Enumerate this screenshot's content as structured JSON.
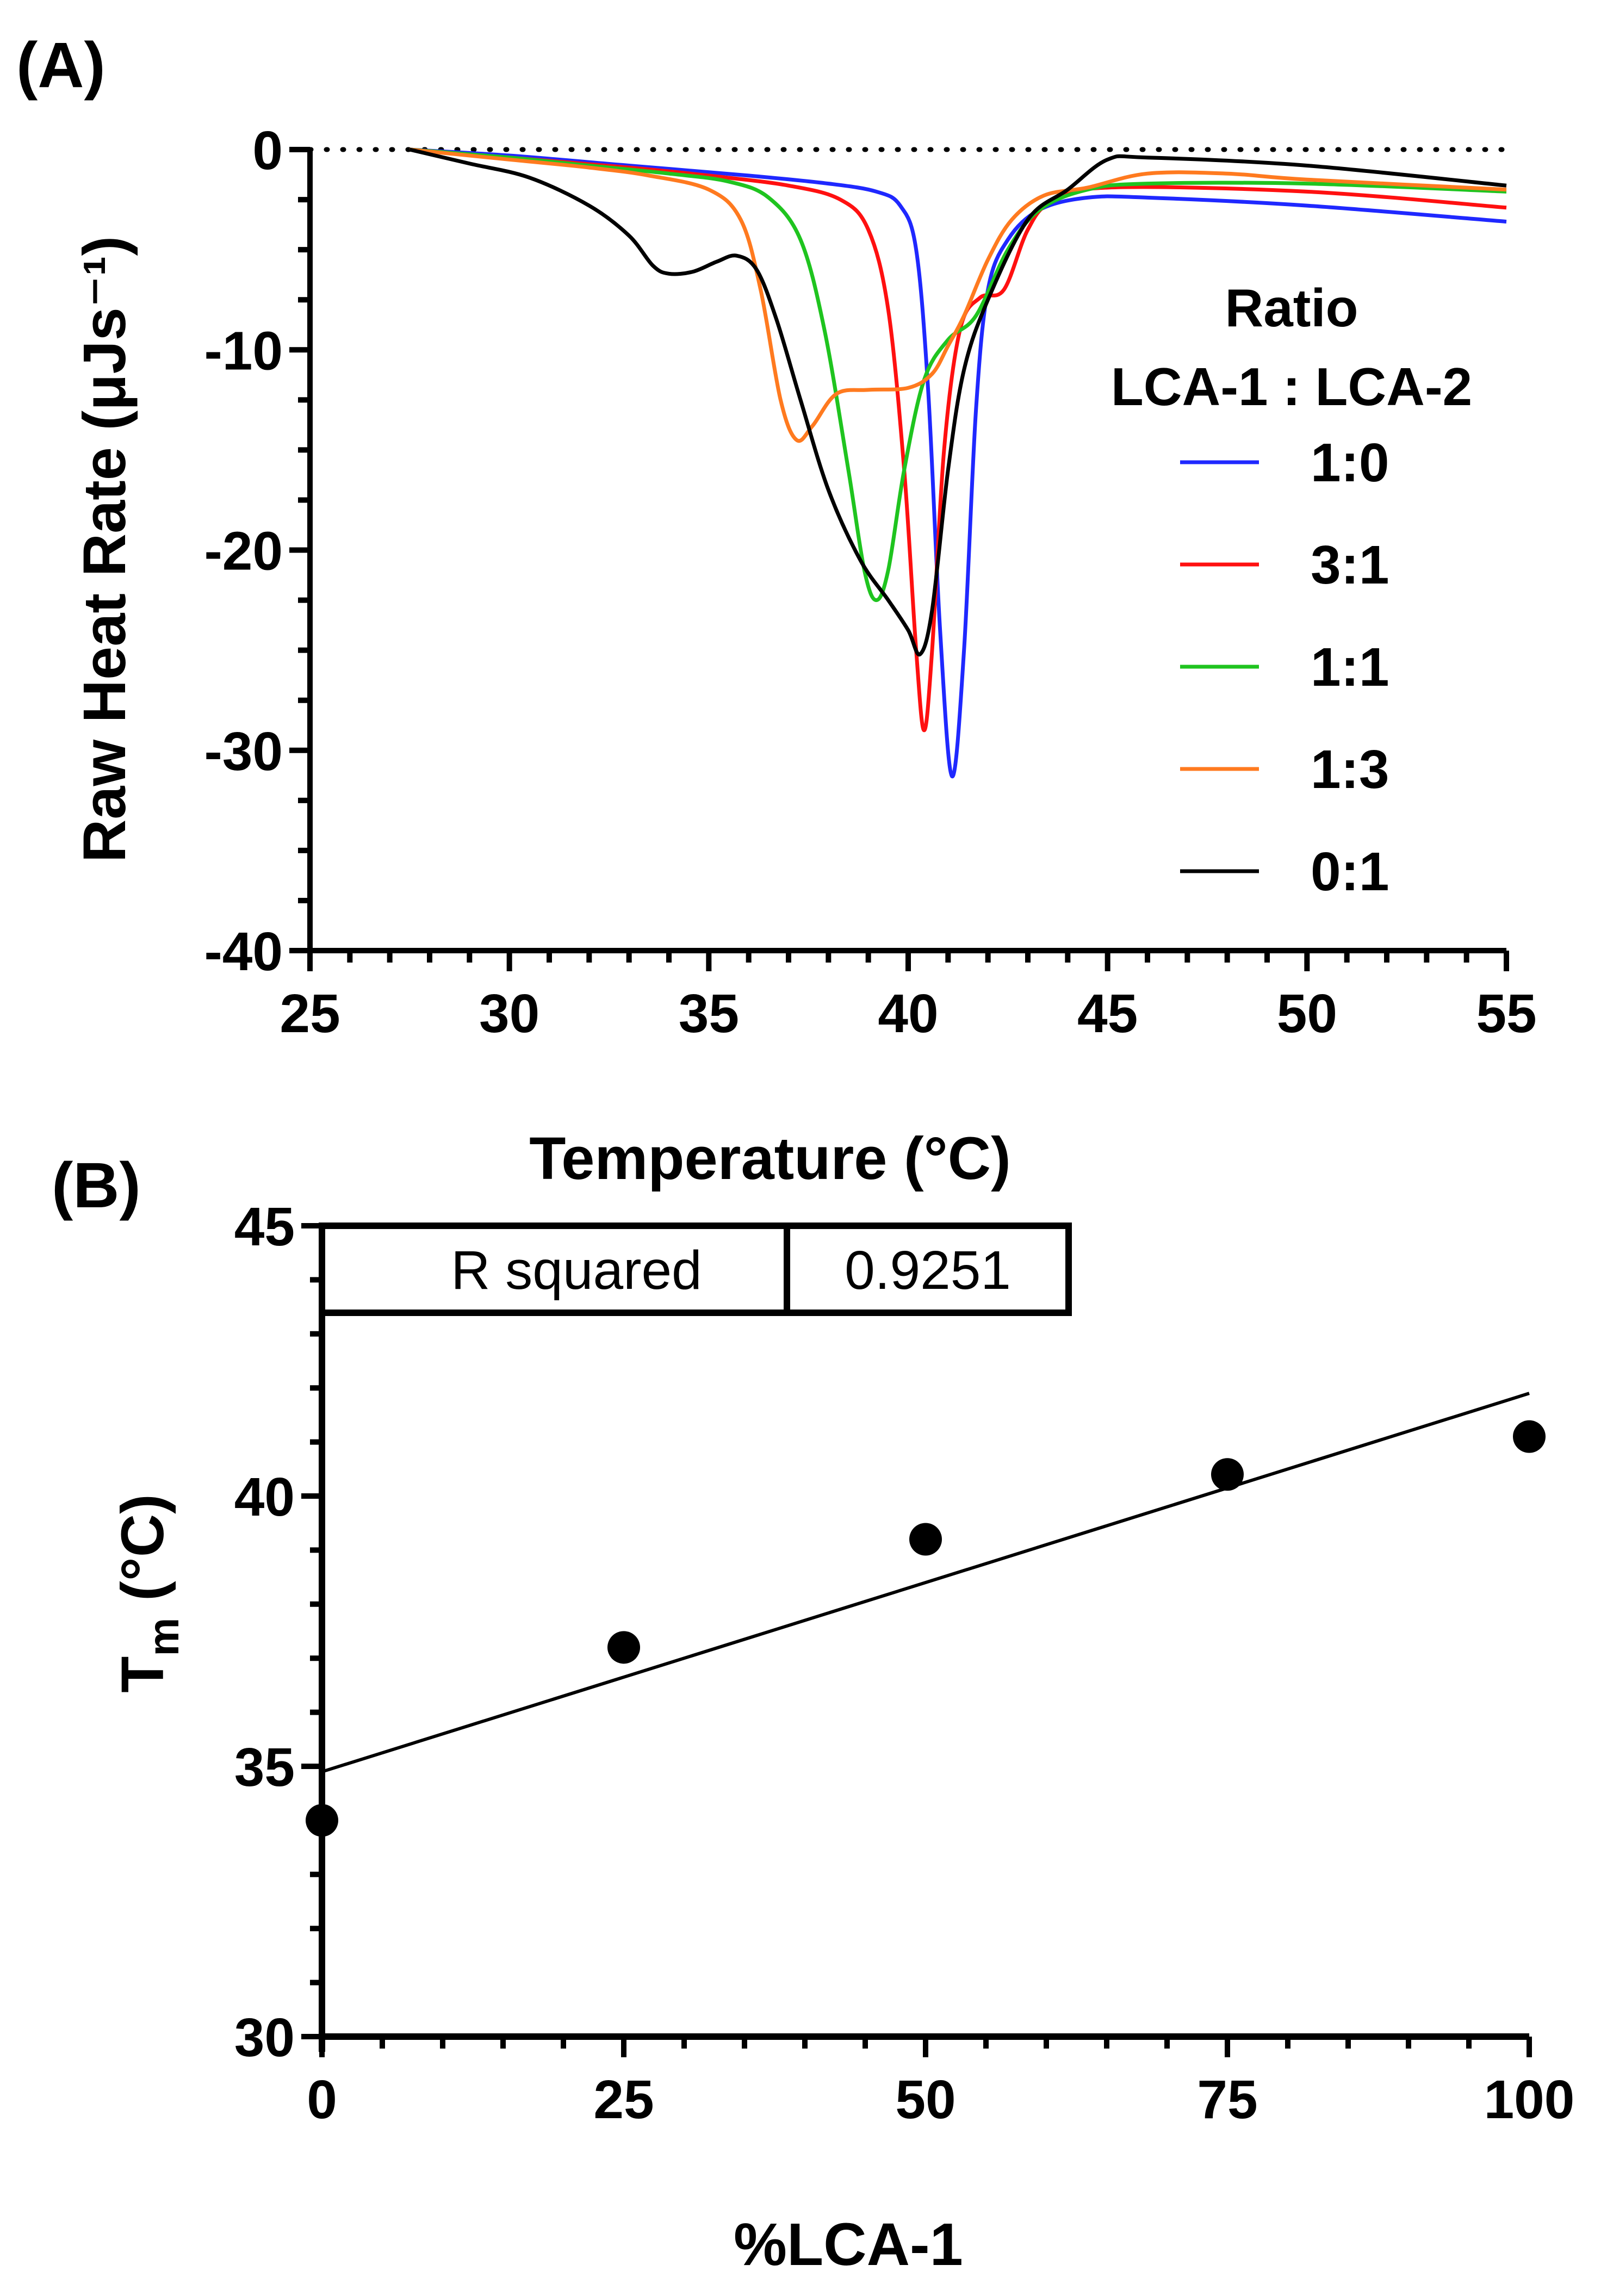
{
  "colors": {
    "blue": "#1f28ff",
    "red": "#ff1010",
    "green": "#1fc41f",
    "orange": "#ff7a1f",
    "black": "#000000"
  },
  "chart_data": [
    {
      "panel": "(A)",
      "type": "line",
      "xlabel": "Temperature (°C)",
      "ylabel": "Raw Heat Rate (μJs⁻¹)",
      "xlim": [
        25,
        55
      ],
      "ylim": [
        -40,
        0
      ],
      "xticks": [
        25,
        30,
        35,
        40,
        45,
        50,
        55
      ],
      "yticks": [
        0,
        -10,
        -20,
        -30,
        -40
      ],
      "reference_line": {
        "y": 0,
        "style": "dotted"
      },
      "legend": {
        "title": [
          "Ratio",
          "LCA-1 : LCA-2"
        ],
        "placement": "right"
      },
      "series": [
        {
          "name": "1:0",
          "color": "#1f28ff",
          "points": [
            [
              27.5,
              0
            ],
            [
              30,
              -0.3
            ],
            [
              33,
              -0.8
            ],
            [
              36,
              -1.3
            ],
            [
              38,
              -1.7
            ],
            [
              39.2,
              -2.1
            ],
            [
              39.8,
              -2.8
            ],
            [
              40.2,
              -5
            ],
            [
              40.5,
              -12
            ],
            [
              40.8,
              -24
            ],
            [
              41.1,
              -31.3
            ],
            [
              41.4,
              -25
            ],
            [
              41.7,
              -13
            ],
            [
              42,
              -7
            ],
            [
              42.5,
              -4.5
            ],
            [
              43.3,
              -3
            ],
            [
              44.5,
              -2.4
            ],
            [
              46,
              -2.4
            ],
            [
              50,
              -2.8
            ],
            [
              55,
              -3.6
            ]
          ]
        },
        {
          "name": "3:1",
          "color": "#ff1010",
          "points": [
            [
              27.5,
              0
            ],
            [
              30,
              -0.4
            ],
            [
              33,
              -0.9
            ],
            [
              35,
              -1.3
            ],
            [
              37,
              -1.8
            ],
            [
              38.3,
              -2.5
            ],
            [
              39,
              -4
            ],
            [
              39.5,
              -8
            ],
            [
              39.9,
              -16
            ],
            [
              40.2,
              -25
            ],
            [
              40.4,
              -29
            ],
            [
              40.6,
              -25
            ],
            [
              40.9,
              -15
            ],
            [
              41.3,
              -9
            ],
            [
              41.8,
              -7.4
            ],
            [
              42.4,
              -7
            ],
            [
              43,
              -4
            ],
            [
              43.6,
              -2.6
            ],
            [
              45,
              -1.9
            ],
            [
              50,
              -2.1
            ],
            [
              55,
              -2.9
            ]
          ]
        },
        {
          "name": "1:1",
          "color": "#1fc41f",
          "points": [
            [
              27.5,
              0
            ],
            [
              30,
              -0.4
            ],
            [
              32,
              -0.8
            ],
            [
              34,
              -1.2
            ],
            [
              35.5,
              -1.6
            ],
            [
              36.5,
              -2.4
            ],
            [
              37.3,
              -4.5
            ],
            [
              37.9,
              -9
            ],
            [
              38.5,
              -16
            ],
            [
              38.9,
              -21
            ],
            [
              39.2,
              -22.5
            ],
            [
              39.5,
              -21
            ],
            [
              39.9,
              -16
            ],
            [
              40.4,
              -11.5
            ],
            [
              41,
              -9.5
            ],
            [
              41.7,
              -8.3
            ],
            [
              42.5,
              -5
            ],
            [
              43.3,
              -3
            ],
            [
              44.5,
              -2
            ],
            [
              46,
              -1.7
            ],
            [
              50,
              -1.7
            ],
            [
              55,
              -2.1
            ]
          ]
        },
        {
          "name": "1:3",
          "color": "#ff7a1f",
          "points": [
            [
              27.5,
              0
            ],
            [
              30,
              -0.5
            ],
            [
              32,
              -0.9
            ],
            [
              33.5,
              -1.3
            ],
            [
              35,
              -2
            ],
            [
              35.8,
              -3.5
            ],
            [
              36.3,
              -7
            ],
            [
              36.8,
              -12.5
            ],
            [
              37.2,
              -14.5
            ],
            [
              37.6,
              -13.8
            ],
            [
              38.2,
              -12.2
            ],
            [
              39,
              -12
            ],
            [
              40,
              -11.9
            ],
            [
              40.6,
              -11.2
            ],
            [
              41,
              -9.8
            ],
            [
              41.4,
              -8.3
            ],
            [
              42,
              -5.5
            ],
            [
              42.6,
              -3.5
            ],
            [
              43.4,
              -2.3
            ],
            [
              44.5,
              -1.9
            ],
            [
              46,
              -1.2
            ],
            [
              48,
              -1.2
            ],
            [
              50,
              -1.5
            ],
            [
              55,
              -2
            ]
          ]
        },
        {
          "name": "0:1",
          "color": "#000000",
          "points": [
            [
              27.5,
              0
            ],
            [
              29,
              -0.7
            ],
            [
              30.5,
              -1.4
            ],
            [
              32,
              -2.8
            ],
            [
              33,
              -4.3
            ],
            [
              33.6,
              -5.8
            ],
            [
              34,
              -6.2
            ],
            [
              34.6,
              -6.1
            ],
            [
              35.2,
              -5.6
            ],
            [
              35.7,
              -5.3
            ],
            [
              36.2,
              -6
            ],
            [
              36.7,
              -8.5
            ],
            [
              37.3,
              -12.5
            ],
            [
              38,
              -17
            ],
            [
              38.8,
              -20.5
            ],
            [
              39.5,
              -22.5
            ],
            [
              40,
              -24
            ],
            [
              40.3,
              -25.2
            ],
            [
              40.6,
              -23
            ],
            [
              41,
              -16
            ],
            [
              41.4,
              -11
            ],
            [
              42,
              -7.5
            ],
            [
              43,
              -3.5
            ],
            [
              44,
              -2
            ],
            [
              45,
              -0.5
            ],
            [
              46,
              -0.4
            ],
            [
              50,
              -0.8
            ],
            [
              55,
              -1.8
            ]
          ]
        }
      ]
    },
    {
      "panel": "(B)",
      "type": "scatter",
      "xlabel": "%LCA-1",
      "ylabel_main": "T",
      "ylabel_sub": "m",
      "ylabel_rest": " (°C)",
      "xlim": [
        0,
        100
      ],
      "ylim": [
        30,
        45
      ],
      "xticks": [
        0,
        25,
        50,
        75,
        100
      ],
      "yticks": [
        30,
        35,
        40,
        45
      ],
      "x": [
        0,
        25,
        50,
        75,
        100
      ],
      "y": [
        34.0,
        37.2,
        39.2,
        40.4,
        41.1
      ],
      "fit_line": {
        "x": [
          0,
          100
        ],
        "y": [
          34.9,
          41.9
        ]
      },
      "r_squared": {
        "label": "R squared",
        "value": "0.9251"
      }
    }
  ]
}
